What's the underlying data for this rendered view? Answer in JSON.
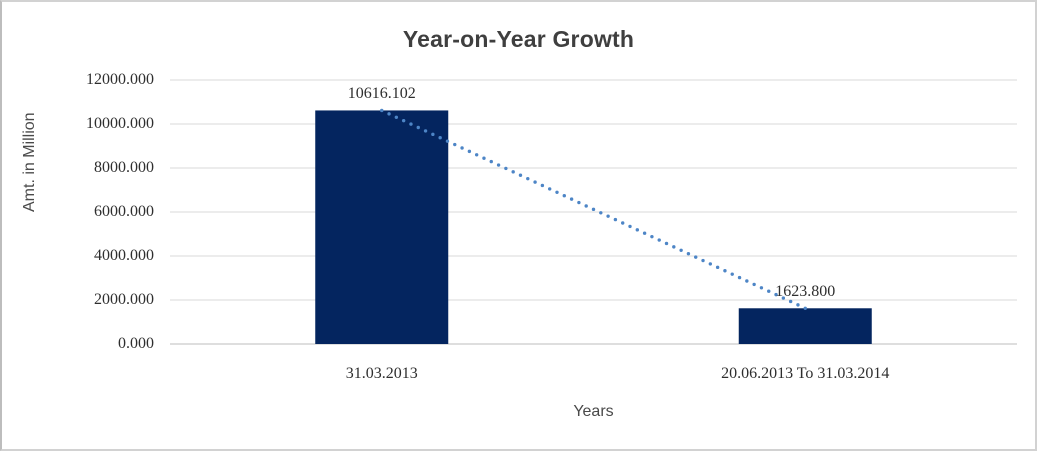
{
  "chart_data": {
    "type": "bar",
    "title": "Year-on-Year Growth",
    "xlabel": "Years",
    "ylabel": "Amt. in Million",
    "categories": [
      "31.03.2013",
      "20.06.2013 To 31.03.2014"
    ],
    "values": [
      10616.102,
      1623.8
    ],
    "data_labels": [
      "10616.102",
      "1623.800"
    ],
    "y_ticks": [
      "12000.000",
      "10000.000",
      "8000.000",
      "6000.000",
      "4000.000",
      "2000.000",
      "0.000"
    ],
    "ylim": [
      0,
      12000
    ],
    "grid": true,
    "legend_position": "none",
    "trendline": {
      "style": "dotted",
      "from_category": 0,
      "to_category": 1
    },
    "colors": {
      "bar_fill": "#04255f",
      "trend_dot": "#4d85c6",
      "gridline": "#d9d9d9",
      "axis_line": "#bdbdbd",
      "title_text": "#3f3f3f",
      "tick_text": "#2e2e2e",
      "axis_title_text": "#4a4a4a",
      "background": "#ffffff"
    }
  }
}
